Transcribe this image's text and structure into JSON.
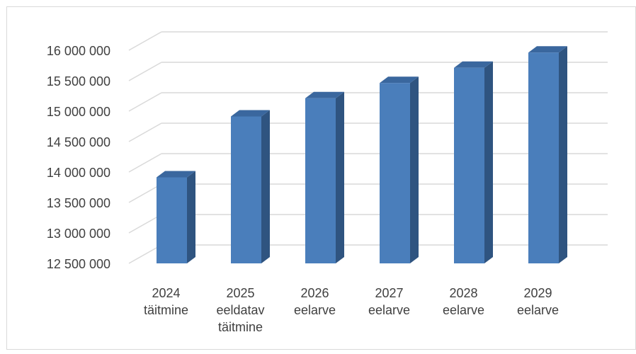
{
  "chart_data": {
    "type": "bar",
    "title": "",
    "xlabel": "",
    "ylabel": "",
    "categories": [
      [
        "2024",
        "täitmine"
      ],
      [
        "2025",
        "eeldatav",
        "täitmine"
      ],
      [
        "2026",
        "eelarve"
      ],
      [
        "2027",
        "eelarve"
      ],
      [
        "2028",
        "eelarve"
      ],
      [
        "2029",
        "eelarve"
      ]
    ],
    "values": [
      13750000,
      14750000,
      15050000,
      15300000,
      15550000,
      15800000
    ],
    "ylim": [
      12500000,
      16000000
    ],
    "yticks": [
      12500000,
      13000000,
      13500000,
      14000000,
      14500000,
      15000000,
      15500000,
      16000000
    ],
    "ytick_labels": [
      "12 500 000",
      "13 000 000",
      "13 500 000",
      "14 000 000",
      "14 500 000",
      "15 000 000",
      "15 500 000",
      "16 000 000"
    ],
    "grid": true,
    "legend": "none",
    "bar_style": "3d-column",
    "colors": {
      "bar_front": "#4a7ebb",
      "bar_side": "#2f5480",
      "bar_top": "#3a679e",
      "gridline": "#d9d9d9",
      "text": "#404040",
      "frame": "#d9d9d9"
    }
  }
}
